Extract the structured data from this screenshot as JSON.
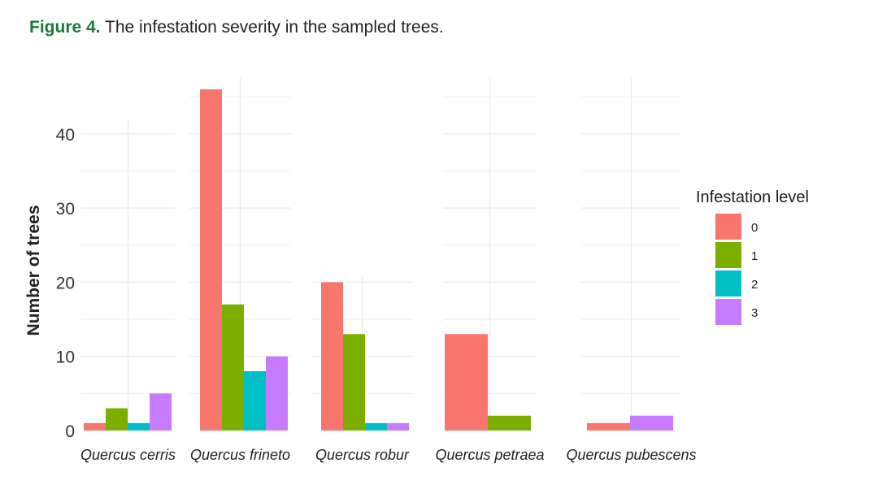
{
  "caption": {
    "label": "Figure 4.",
    "text": "The infestation severity in the sampled trees."
  },
  "chart_data": {
    "type": "bar",
    "categories": [
      "Quercus cerris",
      "Quercus frineto",
      "Quercus robur",
      "Quercus petraea",
      "Quercus pubescens"
    ],
    "series": [
      {
        "name": "0",
        "values": [
          1,
          46,
          20,
          13,
          1
        ]
      },
      {
        "name": "1",
        "values": [
          3,
          17,
          13,
          2,
          0
        ]
      },
      {
        "name": "2",
        "values": [
          1,
          8,
          1,
          0,
          0
        ]
      },
      {
        "name": "3",
        "values": [
          5,
          10,
          1,
          0,
          2
        ]
      }
    ],
    "ylabel": "Number of trees",
    "xlabel": "",
    "ylim": [
      0,
      46
    ],
    "yticks": [
      0,
      10,
      20,
      30,
      40
    ],
    "legend": {
      "title": "Infestation level",
      "position": "right"
    },
    "grid": true,
    "colors": [
      "#F8766D",
      "#7CAE00",
      "#00BFC4",
      "#C77CFF"
    ]
  }
}
